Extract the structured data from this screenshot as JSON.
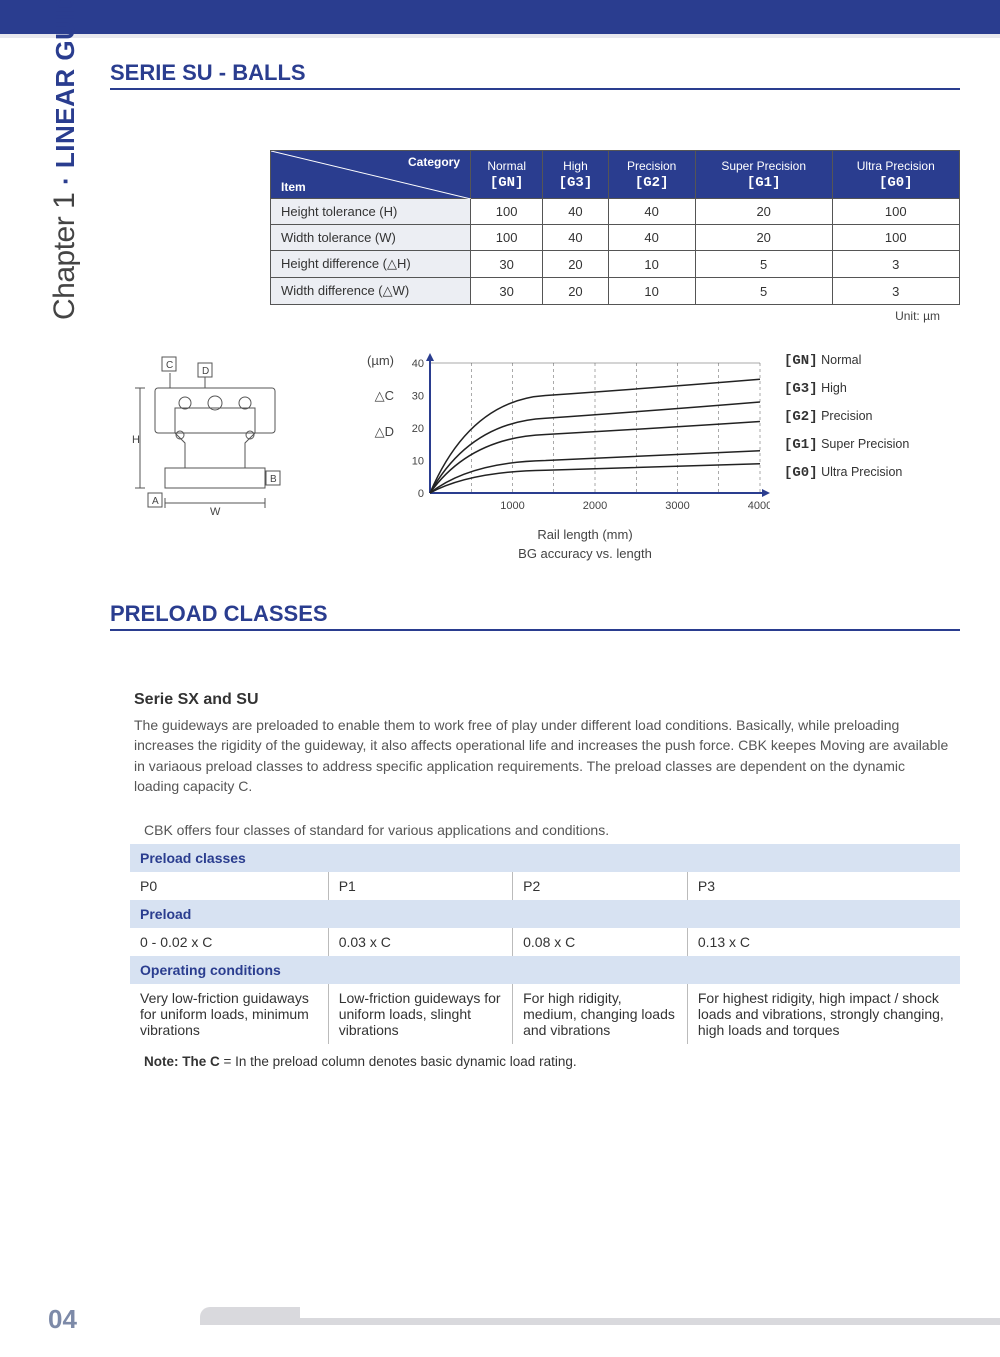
{
  "side": {
    "chapter": "Chapter 1",
    "sep": "·",
    "title": "LINEAR GUIDEWAYS"
  },
  "title1": "SERIE SU - BALLS",
  "tolerance": {
    "corner": {
      "category": "Category",
      "item": "Item"
    },
    "grades": [
      {
        "label": "Normal",
        "code": "[GN]"
      },
      {
        "label": "High",
        "code": "[G3]"
      },
      {
        "label": "Precision",
        "code": "[G2]"
      },
      {
        "label": "Super Precision",
        "code": "[G1]"
      },
      {
        "label": "Ultra Precision",
        "code": "[G0]"
      }
    ],
    "rows": [
      {
        "label": "Height tolerance (H)",
        "vals": [
          "100",
          "40",
          "40",
          "20",
          "100"
        ]
      },
      {
        "label": "Width tolerance (W)",
        "vals": [
          "100",
          "40",
          "40",
          "20",
          "100"
        ]
      },
      {
        "label": "Height difference (△H)",
        "vals": [
          "30",
          "20",
          "10",
          "5",
          "3"
        ]
      },
      {
        "label": "Width difference (△W)",
        "vals": [
          "30",
          "20",
          "10",
          "5",
          "3"
        ]
      }
    ],
    "unit": "Unit: µm"
  },
  "diagram": {
    "labels": {
      "A": "A",
      "B": "B",
      "C": "C",
      "D": "D",
      "H": "H",
      "W": "W"
    }
  },
  "chart": {
    "y_unit": "(µm)",
    "y_sub1": "△C",
    "y_sub2": "△D",
    "y_ticks": [
      "40",
      "30",
      "20",
      "10",
      "0"
    ],
    "y_positions": [
      0,
      30,
      60,
      90,
      120
    ],
    "x_ticks": [
      "1000",
      "2000",
      "3000",
      "4000"
    ],
    "x_positions_pct": [
      25,
      50,
      75,
      100
    ],
    "x_label": "Rail length (mm)",
    "caption": "BG accuracy vs. length",
    "legend": [
      {
        "code": "[GN]",
        "label": "Normal"
      },
      {
        "code": "[G3]",
        "label": "High"
      },
      {
        "code": "[G2]",
        "label": "Precision"
      },
      {
        "code": "[G1]",
        "label": "Super Precision"
      },
      {
        "code": "[G0]",
        "label": "Ultra Precision"
      }
    ],
    "curves": [
      {
        "end_y": 35,
        "mid_y": 30
      },
      {
        "end_y": 28,
        "mid_y": 23
      },
      {
        "end_y": 22,
        "mid_y": 18
      },
      {
        "end_y": 13,
        "mid_y": 10
      },
      {
        "end_y": 9,
        "mid_y": 7
      }
    ],
    "ylim": [
      0,
      40
    ],
    "xlim": [
      0,
      4000
    ],
    "line_color": "#222222",
    "axis_color": "#2a3d8f",
    "grid_color": "#555555"
  },
  "title2": "PRELOAD CLASSES",
  "sub": "Serie SX and SU",
  "para": "The guideways are preloaded to enable them to work free of play under different load conditions. Basically, while preloading increases the rigidity of the guideway, it also affects operational life and increases the push force. CBK keepes Moving are available in variaous preload classes to address specific application requirements. The preload classes are dependent on the dynamic loading capacity C.",
  "pre_intro": "CBK offers four classes of standard for various applications and conditions.",
  "preload": {
    "headers": [
      "Preload classes",
      "Preload",
      "Operating conditions"
    ],
    "cols": [
      {
        "cls": "P0",
        "pre": "0 - 0.02 x C",
        "op": "Very low-friction guidaways for uniform loads, minimum vibrations"
      },
      {
        "cls": "P1",
        "pre": "0.03 x C",
        "op": "Low-friction guideways for uniform loads, slinght vibrations"
      },
      {
        "cls": "P2",
        "pre": "0.08 x C",
        "op": "For high ridigity, medium, changing loads and vibrations"
      },
      {
        "cls": "P3",
        "pre": "0.13 x C",
        "op": "For highest ridigity, high impact / shock loads and vibrations, strongly changing, high loads and torques"
      }
    ]
  },
  "note": {
    "lead": "Note: The C",
    "rest": " = In the preload column denotes basic dynamic load rating."
  },
  "page_num": "04"
}
